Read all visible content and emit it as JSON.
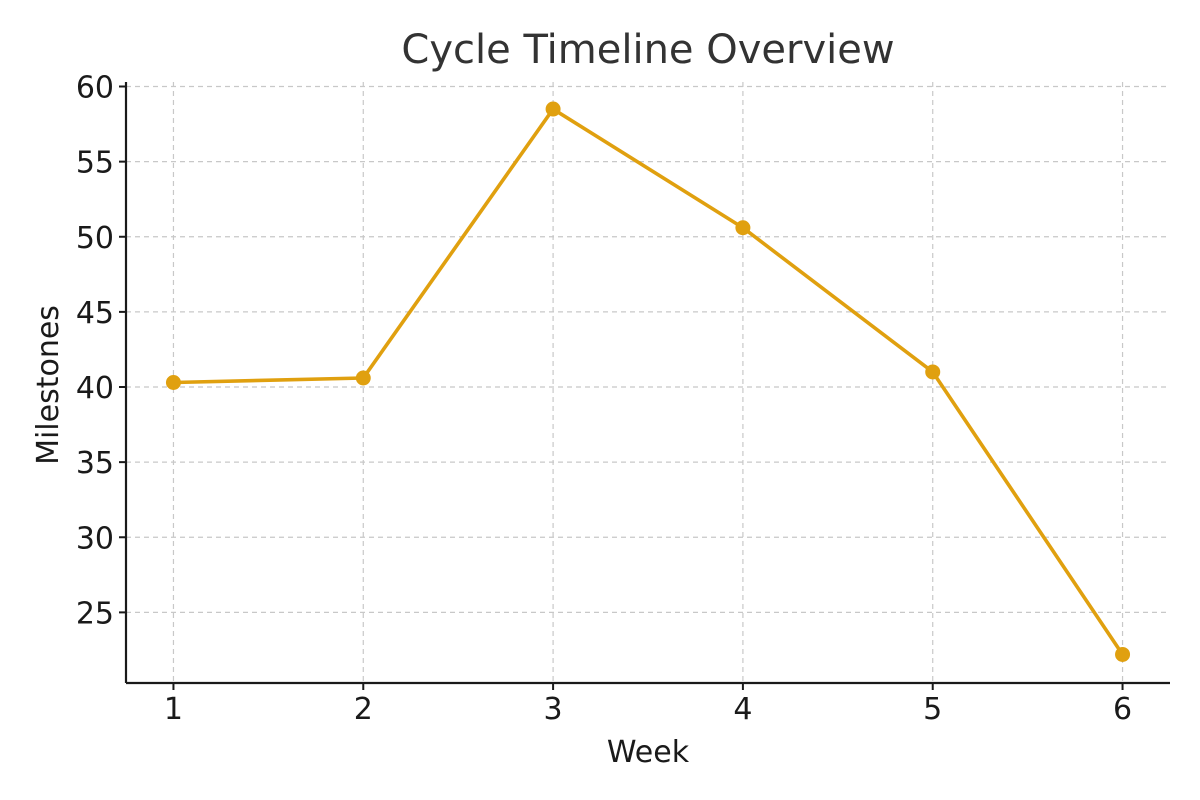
{
  "chart_data": {
    "type": "line",
    "title": "Cycle Timeline Overview",
    "xlabel": "Week",
    "ylabel": "Milestones",
    "x": [
      1,
      2,
      3,
      4,
      5,
      6
    ],
    "series": [
      {
        "values": [
          40.3,
          40.6,
          58.5,
          50.6,
          41.0,
          22.2
        ],
        "color": "#E0A00F"
      }
    ],
    "xlim": [
      0.75,
      6.25
    ],
    "ylim": [
      20.3,
      60.3
    ],
    "xticks": [
      1,
      2,
      3,
      4,
      5,
      6
    ],
    "yticks": [
      25,
      30,
      35,
      40,
      45,
      50,
      55,
      60
    ],
    "grid": true,
    "legend": "none"
  }
}
